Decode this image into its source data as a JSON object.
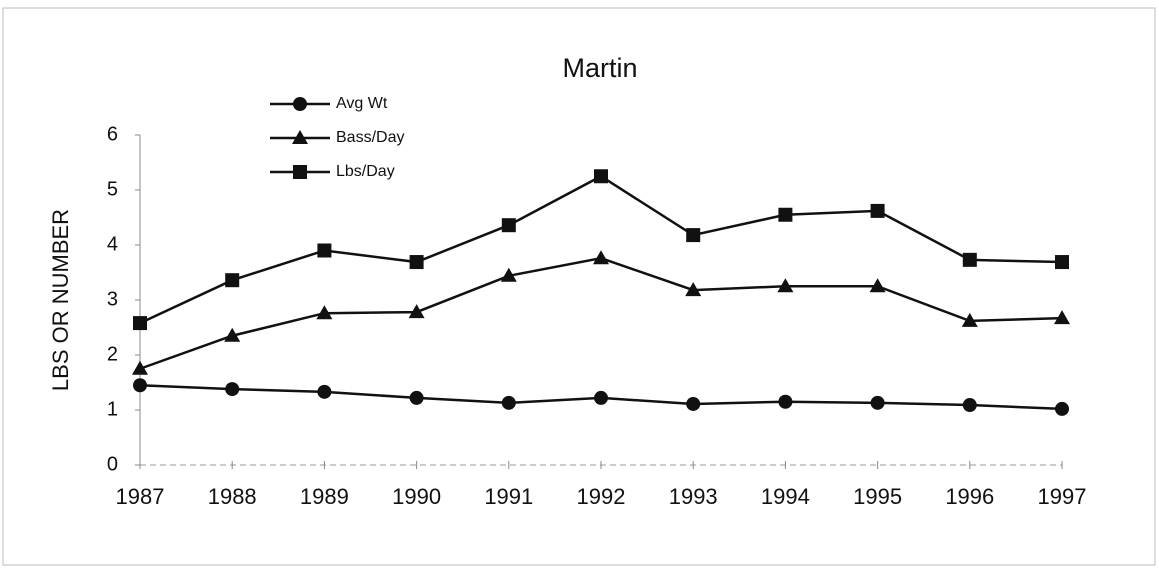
{
  "chart_data": {
    "type": "line",
    "title": "Martin",
    "y_label": "LBS OR NUMBER",
    "x": [
      1987,
      1988,
      1989,
      1990,
      1991,
      1992,
      1993,
      1994,
      1995,
      1996,
      1997
    ],
    "xlim": [
      1987,
      1997
    ],
    "xticks": [
      1987,
      1988,
      1989,
      1990,
      1991,
      1992,
      1993,
      1994,
      1995,
      1996,
      1997
    ],
    "ylim": [
      0,
      6
    ],
    "yticks": [
      0,
      1,
      2,
      3,
      4,
      5,
      6
    ],
    "grid": false,
    "legend": "top-left",
    "series": [
      {
        "name": "Avg Wt",
        "color": "#111111",
        "marker": "circle",
        "values": [
          1.45,
          1.38,
          1.33,
          1.22,
          1.13,
          1.22,
          1.11,
          1.15,
          1.13,
          1.09,
          1.02
        ]
      },
      {
        "name": "Bass/Day",
        "color": "#111111",
        "marker": "triangle",
        "values": [
          1.75,
          2.35,
          2.76,
          2.78,
          3.44,
          3.76,
          3.18,
          3.25,
          3.25,
          2.62,
          2.67
        ]
      },
      {
        "name": "Lbs/Day",
        "color": "#111111",
        "marker": "square",
        "values": [
          2.58,
          3.36,
          3.9,
          3.69,
          4.36,
          5.25,
          4.18,
          4.55,
          4.62,
          3.73,
          3.69
        ]
      }
    ]
  }
}
